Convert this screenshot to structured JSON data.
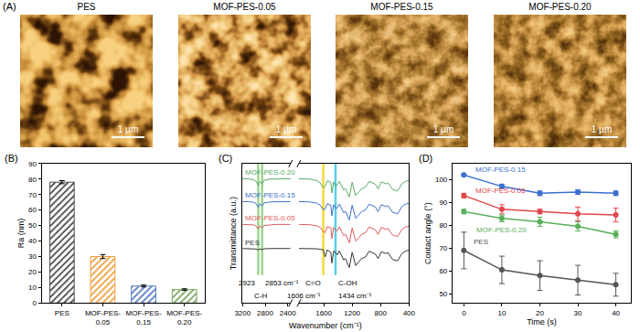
{
  "afm": {
    "label": "(A)",
    "images": [
      {
        "title": "PES",
        "scale_bar": "1 μm"
      },
      {
        "title": "MOF-PES-0.05",
        "scale_bar": "1 μm"
      },
      {
        "title": "MOF-PES-0.15",
        "scale_bar": "1 μm"
      },
      {
        "title": "MOF-PES-0.20",
        "scale_bar": "1 μm"
      }
    ]
  },
  "chart_data": [
    {
      "label": "(B)",
      "type": "bar",
      "categories": [
        "PES",
        "MOF-PES-0.05",
        "MOF-PES-0.15",
        "MOF-PES-0.20"
      ],
      "values": [
        78,
        30,
        11,
        8.7
      ],
      "errors": [
        1,
        1.3,
        0.6,
        0.5
      ],
      "colors": [
        "#4d4d4d",
        "#f0a040",
        "#5a7ec8",
        "#7aa860"
      ],
      "marker": "hatched",
      "y_label": "Ra (nm)",
      "ylim": [
        0,
        90
      ],
      "yticks": [
        0,
        10,
        20,
        30,
        40,
        50,
        60,
        70,
        80,
        90
      ],
      "grid": false
    },
    {
      "label": "(C)",
      "type": "line",
      "x_label": "Wavenumber (cm⁻¹)",
      "y_label": "Transmittance (a.u.)",
      "x": [
        3200,
        3100,
        3000,
        2960,
        2923,
        2890,
        2853,
        2820,
        2700,
        2600,
        2500,
        2400,
        2350,
        1950,
        1800,
        1700,
        1650,
        1606,
        1580,
        1550,
        1500,
        1485,
        1460,
        1434,
        1410,
        1380,
        1320,
        1295,
        1240,
        1200,
        1150,
        1105,
        1070,
        1010,
        960,
        870,
        835,
        790,
        720,
        700,
        630,
        560,
        500,
        450,
        400
      ],
      "series": [
        {
          "name": "PES",
          "color": "#333333",
          "values": [
            0.95,
            0.95,
            0.94,
            0.93,
            0.9,
            0.93,
            0.91,
            0.94,
            0.95,
            0.95,
            0.95,
            0.95,
            0.95,
            0.95,
            0.95,
            0.94,
            0.92,
            0.9,
            0.62,
            0.9,
            0.8,
            0.38,
            0.85,
            0.8,
            0.7,
            0.85,
            0.5,
            0.56,
            0.2,
            0.8,
            0.28,
            0.42,
            0.55,
            0.62,
            0.85,
            0.72,
            0.55,
            0.82,
            0.75,
            0.8,
            0.52,
            0.46,
            0.75,
            0.85,
            0.88
          ]
        },
        {
          "name": "MOF-PES-0.05",
          "color": "#e05a5a",
          "values": [
            1.9,
            1.9,
            1.88,
            1.84,
            1.72,
            1.84,
            1.76,
            1.86,
            1.89,
            1.9,
            1.9,
            1.9,
            1.9,
            1.9,
            1.89,
            1.85,
            1.78,
            1.62,
            1.58,
            1.82,
            1.76,
            1.34,
            1.78,
            1.68,
            1.64,
            1.8,
            1.46,
            1.52,
            1.18,
            1.76,
            1.24,
            1.38,
            1.5,
            1.58,
            1.8,
            1.68,
            1.5,
            1.78,
            1.7,
            1.75,
            1.48,
            1.42,
            1.7,
            1.8,
            1.83
          ]
        },
        {
          "name": "MOF-PES-0.15",
          "color": "#3d6fc8",
          "values": [
            2.8,
            2.8,
            2.77,
            2.72,
            2.58,
            2.72,
            2.63,
            2.75,
            2.79,
            2.8,
            2.8,
            2.8,
            2.8,
            2.8,
            2.79,
            2.74,
            2.66,
            2.48,
            2.5,
            2.72,
            2.66,
            2.24,
            2.68,
            2.54,
            2.55,
            2.7,
            2.36,
            2.42,
            2.08,
            2.66,
            2.14,
            2.28,
            2.4,
            2.48,
            2.7,
            2.58,
            2.4,
            2.68,
            2.6,
            2.65,
            2.38,
            2.32,
            2.6,
            2.7,
            2.73
          ]
        },
        {
          "name": "MOF-PES-0.20",
          "color": "#5aaa6a",
          "values": [
            3.7,
            3.7,
            3.66,
            3.6,
            3.44,
            3.6,
            3.5,
            3.64,
            3.69,
            3.7,
            3.7,
            3.7,
            3.7,
            3.7,
            3.69,
            3.63,
            3.54,
            3.34,
            3.4,
            3.62,
            3.56,
            3.14,
            3.58,
            3.42,
            3.45,
            3.6,
            3.26,
            3.32,
            2.98,
            3.56,
            3.04,
            3.18,
            3.3,
            3.38,
            3.6,
            3.48,
            3.3,
            3.58,
            3.5,
            3.55,
            3.28,
            3.22,
            3.5,
            3.6,
            3.63
          ]
        }
      ],
      "xlim": [
        3200,
        2350
      ],
      "xticks": [
        3200,
        2800,
        2400
      ],
      "x2lim": [
        1950,
        400
      ],
      "x2ticks": [
        1600,
        1200,
        800,
        400
      ],
      "ylim": [
        -1.2,
        4.3
      ],
      "tick_labels": "x",
      "bands": [
        {
          "group": "C-H",
          "color": "#8fcf7f",
          "peaks": [
            {
              "x": 2923,
              "label": "2923"
            },
            {
              "x": 2853,
              "label": "2853 cm⁻¹"
            }
          ]
        },
        {
          "group": "C=O",
          "color": "#f2d21b",
          "peaks": [
            {
              "x": 1606,
              "label": "1606 cm⁻¹"
            }
          ]
        },
        {
          "group": "C-OH",
          "color": "#3fc6e0",
          "peaks": [
            {
              "x": 1434,
              "label": "1434 cm⁻¹"
            }
          ]
        }
      ],
      "grid": false
    },
    {
      "label": "(D)",
      "type": "line",
      "marker": "circle",
      "x": [
        0,
        10,
        20,
        30,
        40
      ],
      "x_label": "Time (s)",
      "y_label": "Contact angle (°)",
      "series": [
        {
          "name": "MOF-PES-0.15",
          "color": "#3b6fd0",
          "values": [
            102,
            97,
            94,
            94.5,
            94
          ],
          "errors": [
            0.5,
            1,
            1,
            1,
            1
          ]
        },
        {
          "name": "MOF-PES-0.05",
          "color": "#e0474c",
          "values": [
            93,
            87,
            86,
            85,
            84.5
          ],
          "errors": [
            1,
            2,
            1,
            3,
            3
          ]
        },
        {
          "name": "MOF-PES-0.20",
          "color": "#58b05a",
          "values": [
            86,
            83,
            81.5,
            79.5,
            76
          ],
          "errors": [
            1,
            1.5,
            2,
            2,
            1.5
          ]
        },
        {
          "name": "PES",
          "color": "#555555",
          "values": [
            69,
            60.5,
            58,
            56,
            54
          ],
          "errors": [
            8,
            6,
            6.5,
            6.5,
            5
          ]
        }
      ],
      "xlim": [
        -3,
        44
      ],
      "xticks": [
        0,
        10,
        20,
        30,
        40
      ],
      "ylim": [
        46,
        107
      ],
      "yticks": [
        50,
        60,
        70,
        80,
        90,
        100
      ],
      "grid": false
    }
  ]
}
